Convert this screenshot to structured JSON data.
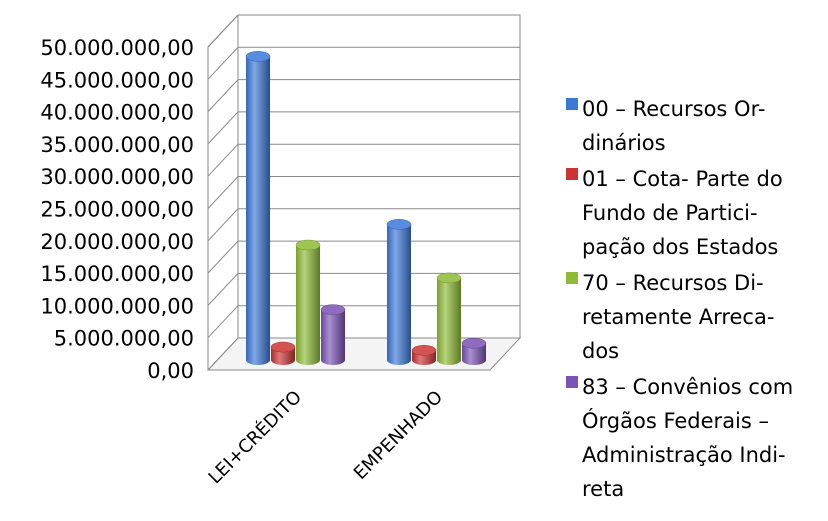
{
  "chart_data": {
    "type": "bar",
    "title": "",
    "categories": [
      "LEI+CRÉDITO",
      "EMPENHADO"
    ],
    "series": [
      {
        "name": "00 – Recursos Or- dinários",
        "values": [
          47000000,
          21000000
        ],
        "color": "#3b78d8"
      },
      {
        "name": "01 – Cota- Parte do Fundo de Partici- pação dos Estados",
        "values": [
          2000000,
          1500000
        ],
        "color": "#cc3333"
      },
      {
        "name": "70 – Recursos Di- retamente Arreca- dos",
        "values": [
          17800000,
          12700000
        ],
        "color": "#8dbb35"
      },
      {
        "name": "83 – Convênios com Órgãos Federais – Administração Indi- reta",
        "values": [
          7800000,
          2600000
        ],
        "color": "#7b52b5"
      }
    ],
    "ylim": [
      0,
      50000000
    ],
    "yticks": [
      "0,00",
      "5.000.000,00",
      "10.000.000,00",
      "15.000.000,00",
      "20.000.000,00",
      "25.000.000,00",
      "30.000.000,00",
      "35.000.000,00",
      "40.000.000,00",
      "45.000.000,00",
      "50.000.000,00"
    ],
    "xlabel": "",
    "ylabel": "",
    "grid": true,
    "legend_position": "right",
    "style": "3d-cylinder"
  },
  "legend": [
    {
      "lines": [
        "00 – Recursos Or-",
        "dinários"
      ]
    },
    {
      "lines": [
        "01 – Cota- Parte do",
        "Fundo de Partici-",
        "pação dos Estados"
      ]
    },
    {
      "lines": [
        "70 – Recursos Di-",
        "retamente Arreca-",
        "dos"
      ]
    },
    {
      "lines": [
        "83 – Convênios com",
        "Órgãos Federais –",
        "Administração Indi-",
        "reta"
      ]
    }
  ]
}
